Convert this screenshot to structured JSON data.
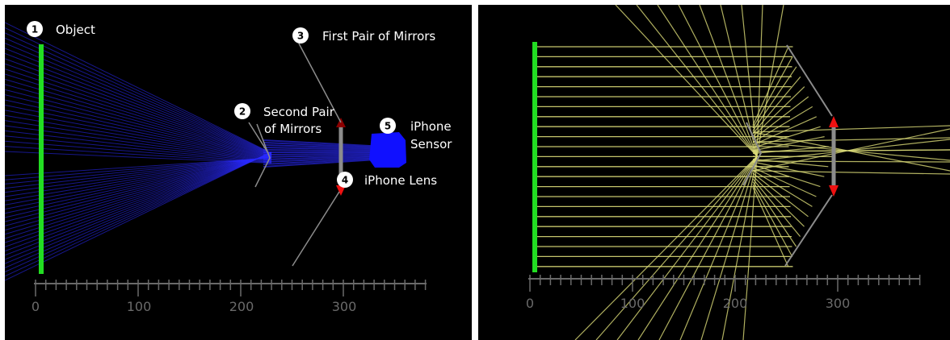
{
  "left_panel": {
    "callouts": [
      {
        "id": "1",
        "label": "Object"
      },
      {
        "id": "2",
        "label_line1": "Second Pair",
        "label_line2": "of Mirrors"
      },
      {
        "id": "3",
        "label": "First Pair of Mirrors"
      },
      {
        "id": "4",
        "label": "iPhone Lens"
      },
      {
        "id": "5",
        "label_line1": "iPhone",
        "label_line2": "Sensor"
      }
    ],
    "ruler": {
      "tick_labels": [
        "0",
        "100",
        "200",
        "300"
      ]
    }
  },
  "right_panel": {
    "ruler": {
      "tick_labels": [
        "0",
        "100",
        "200",
        "300"
      ]
    }
  },
  "colors": {
    "panel_background": "#000000",
    "object_bar": "#22dd22",
    "left_rays": "#2a2aff",
    "right_rays": "#dcdc78",
    "mirror": "#8c8c8c",
    "lens_arrow": "#ee1111",
    "sensor": "#1010ff",
    "ruler": "#6a6a6a",
    "label_text": "#ffffff",
    "callout_badge": "#ffffff"
  }
}
